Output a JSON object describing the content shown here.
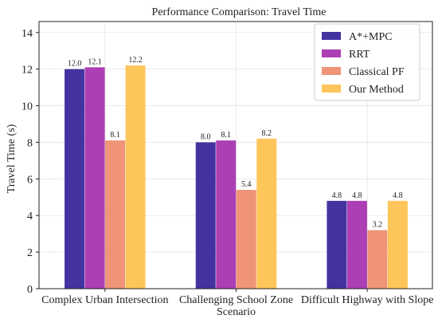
{
  "chart_data": {
    "type": "bar",
    "title": "Performance Comparison: Travel Time",
    "xlabel": "",
    "ylabel": "Travel Time (s)",
    "ylim": [
      0,
      14.6
    ],
    "yticks": [
      0,
      2,
      4,
      6,
      8,
      10,
      12,
      14
    ],
    "grid": true,
    "legend_position": "top-right",
    "categories": [
      [
        "Complex Urban Intersection"
      ],
      [
        "Challenging School Zone",
        "Scenario"
      ],
      [
        "Difficult Highway with Slope"
      ]
    ],
    "series": [
      {
        "name": "A*+MPC",
        "color": "#4233a0",
        "values": [
          12.0,
          8.0,
          4.8
        ],
        "labels": [
          "12.0",
          "8.0",
          "4.8"
        ]
      },
      {
        "name": "RRT",
        "color": "#ab3fb3",
        "values": [
          12.1,
          8.1,
          4.8
        ],
        "labels": [
          "12.1",
          "8.1",
          "4.8"
        ]
      },
      {
        "name": "Classical PF",
        "color": "#ef9477",
        "values": [
          8.1,
          5.4,
          3.2
        ],
        "labels": [
          "8.1",
          "5.4",
          "3.2"
        ]
      },
      {
        "name": "Our Method",
        "color": "#fec55a",
        "values": [
          12.2,
          8.2,
          4.8
        ],
        "labels": [
          "12.2",
          "8.2",
          "4.8"
        ]
      }
    ]
  }
}
